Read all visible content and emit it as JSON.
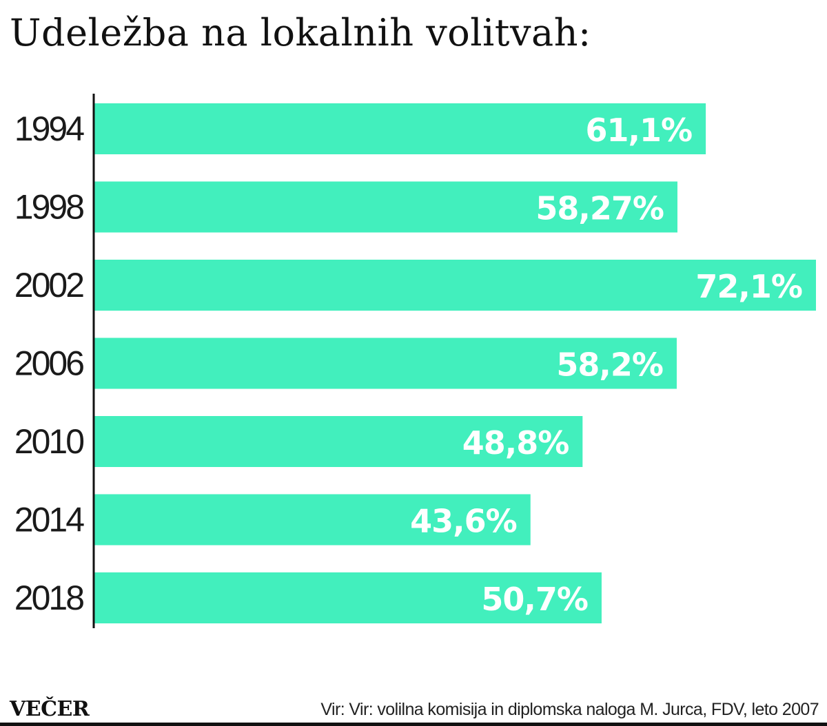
{
  "title": "Udeležba na lokalnih volitvah:",
  "logo": "VEČER",
  "source": "Vir: Vir: volilna komisija in diplomska naloga M. Jurca, FDV, leto 2007",
  "colors": {
    "bar": "#42efbd",
    "axis": "#111111",
    "value_text": "#ffffff",
    "label_text": "#1a1a1a"
  },
  "chart_data": {
    "type": "bar",
    "orientation": "horizontal",
    "title": "Udeležba na lokalnih volitvah:",
    "categories": [
      "1994",
      "1998",
      "2002",
      "2006",
      "2010",
      "2014",
      "2018"
    ],
    "values": [
      61.1,
      58.27,
      72.1,
      58.2,
      48.8,
      43.6,
      50.7
    ],
    "value_labels": [
      "61,1%",
      "58,27%",
      "72,1%",
      "58,2%",
      "48,8%",
      "43,6%",
      "50,7%"
    ],
    "xlabel": "",
    "ylabel": "",
    "xlim": [
      0,
      72.1
    ],
    "grid": false,
    "legend": "none"
  }
}
